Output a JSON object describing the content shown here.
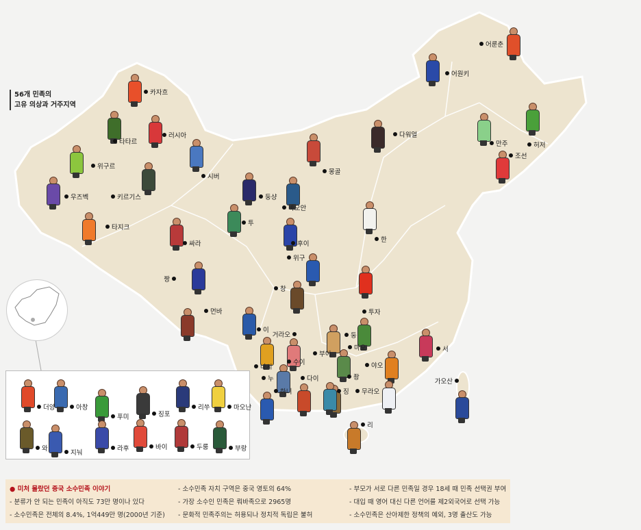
{
  "title": {
    "line1": "56개 민족의",
    "line2": "고유 의상과 거주지역"
  },
  "colors": {
    "land": "#ede4cf",
    "sea": "#f3f3f2",
    "border": "#ffffff",
    "panel": "#f6e8d2",
    "headline": "#b5141d"
  },
  "groups": [
    {
      "name": "카자흐",
      "color": "#e8502a"
    },
    {
      "name": "타타르",
      "color": "#3f6e2a"
    },
    {
      "name": "러시아",
      "color": "#d8383a"
    },
    {
      "name": "위구르",
      "color": "#8cc63e"
    },
    {
      "name": "시버",
      "color": "#4a78c0"
    },
    {
      "name": "우즈벡",
      "color": "#6a4aa8"
    },
    {
      "name": "키르기스",
      "color": "#3c4a3a"
    },
    {
      "name": "타지크",
      "color": "#f07a2a"
    },
    {
      "name": "둥샹",
      "color": "#2a2a6a"
    },
    {
      "name": "바오안",
      "color": "#2a5a8a"
    },
    {
      "name": "투",
      "color": "#3c8a5a"
    },
    {
      "name": "싸라",
      "color": "#b83a3a"
    },
    {
      "name": "후이",
      "color": "#2a44a8"
    },
    {
      "name": "한",
      "color": "#f2f2ee"
    },
    {
      "name": "위구",
      "color": "#2a5ab0"
    },
    {
      "name": "짱",
      "color": "#2a3a9a"
    },
    {
      "name": "창",
      "color": "#6a4a2a"
    },
    {
      "name": "먼바",
      "color": "#8a3a2a"
    },
    {
      "name": "투자",
      "color": "#e0301e"
    },
    {
      "name": "이",
      "color": "#2a5aa8"
    },
    {
      "name": "거라오",
      "color": "#2a3a7a"
    },
    {
      "name": "둥",
      "color": "#d0a060"
    },
    {
      "name": "마오",
      "color": "#4a8a3a"
    },
    {
      "name": "부이",
      "color": "#5a8a4a"
    },
    {
      "name": "수이",
      "color": "#e07a7a"
    },
    {
      "name": "나시",
      "color": "#e0a020"
    },
    {
      "name": "야오",
      "color": "#e08020"
    },
    {
      "name": "누",
      "color": "#5a7aa8"
    },
    {
      "name": "다이",
      "color": "#c84a2a"
    },
    {
      "name": "좡",
      "color": "#8a6a3a"
    },
    {
      "name": "하니",
      "color": "#2a5ab0"
    },
    {
      "name": "징",
      "color": "#3a8aa8"
    },
    {
      "name": "무라오",
      "color": "#eef0f4"
    },
    {
      "name": "리",
      "color": "#c87a2a"
    },
    {
      "name": "서",
      "color": "#c83a5a"
    },
    {
      "name": "가오산",
      "color": "#2a4a9a"
    },
    {
      "name": "어룬춘",
      "color": "#e0502a"
    },
    {
      "name": "어원키",
      "color": "#2a4aa8"
    },
    {
      "name": "다워얼",
      "color": "#3a2a2a"
    },
    {
      "name": "만주",
      "color": "#8ad08a"
    },
    {
      "name": "조선",
      "color": "#e03a3a"
    },
    {
      "name": "허저",
      "color": "#4aa03a"
    },
    {
      "name": "몽골",
      "color": "#c84a3a"
    }
  ],
  "inset_groups": [
    {
      "name": "더앙",
      "color": "#e04a2a"
    },
    {
      "name": "아창",
      "color": "#3a6ab0"
    },
    {
      "name": "푸미",
      "color": "#3a9a3a"
    },
    {
      "name": "징포",
      "color": "#3a3a3a"
    },
    {
      "name": "리쑤",
      "color": "#2a3a7a"
    },
    {
      "name": "마오난",
      "color": "#f0d040"
    },
    {
      "name": "와",
      "color": "#6a5a2a"
    },
    {
      "name": "지눠",
      "color": "#3a5ab0"
    },
    {
      "name": "라후",
      "color": "#3a4aa8"
    },
    {
      "name": "바이",
      "color": "#e04a3a"
    },
    {
      "name": "두룽",
      "color": "#b03a3a"
    },
    {
      "name": "부랑",
      "color": "#2a5a3a"
    }
  ],
  "facts": {
    "heading": "● 미처 몰랐던 중국 소수민족 이야기",
    "items": [
      "- 분류가 안 되는 민족이 아직도 73만 명이나 있다",
      "- 소수민족은 전체의 8.4%, 1억449만 명(2000년 기준)",
      "- 소수민족 자치 구역은 중국 영토의 64%",
      "- 가장 소수인 민족은 뤄바족으로 2965명",
      "- 문화적 민족주의는 허용되나 정치적 독립은 불허",
      "- 부모가 서로 다른 민족일 경우 18세 때 민족 선택권 부여",
      "- 대입 때 영어 대신 다른 언어를 제2외국어로 선택 가능",
      "- 소수민족은 산아제한 정책의 예외, 3명 출산도 가능"
    ]
  }
}
